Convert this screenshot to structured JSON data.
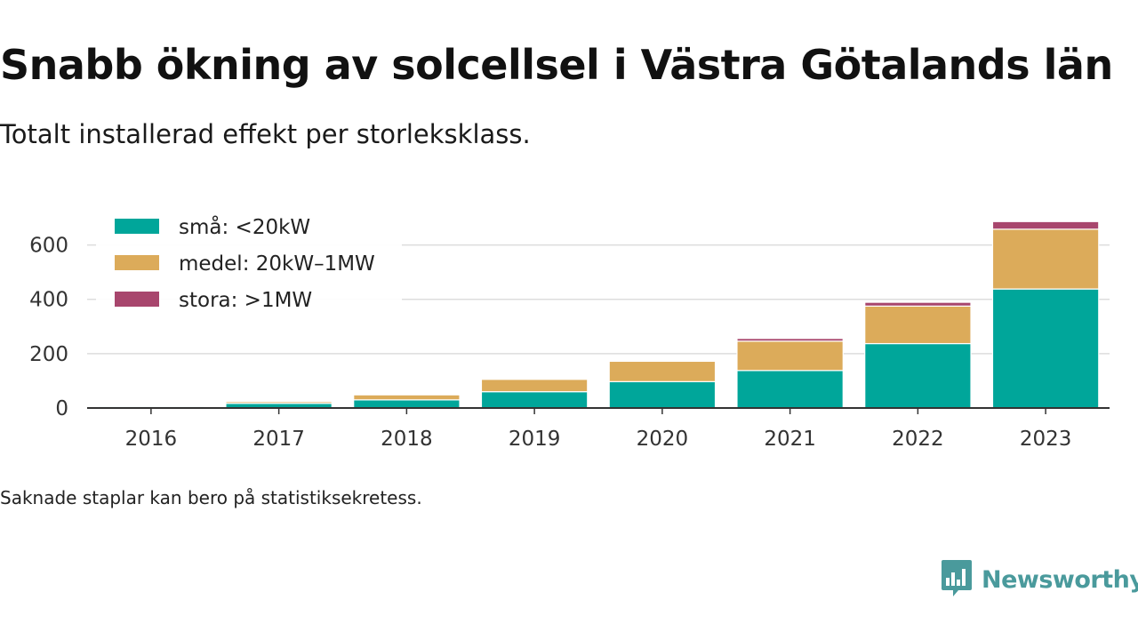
{
  "title": "Snabb ökning av solcellsel i Västra Götalands län",
  "subtitle": "Totalt installerad effekt per storleksklass.",
  "footnote": "Saknade staplar kan bero på statistiksekretess.",
  "brand": {
    "name": "Newsworthy",
    "icon": "newsworthy-logo-icon",
    "color": "#4a9a9c"
  },
  "chart_data": {
    "type": "bar",
    "stacked": true,
    "title": "",
    "xlabel": "",
    "ylabel": "",
    "categories": [
      "2016",
      "2017",
      "2018",
      "2019",
      "2020",
      "2021",
      "2022",
      "2023"
    ],
    "ylim": [
      0,
      700
    ],
    "yticks": [
      0,
      200,
      400,
      600
    ],
    "grid": true,
    "legend_position": "top-left",
    "series": [
      {
        "name": "små: <20kW",
        "color": "#00a69a",
        "values": [
          7,
          17,
          30,
          60,
          97,
          138,
          237,
          438
        ]
      },
      {
        "name": "medel: 20kW–1MW",
        "color": "#dcab5a",
        "values": [
          1,
          8,
          20,
          47,
          75,
          108,
          138,
          220
        ]
      },
      {
        "name": "stora: >1MW",
        "color": "#a8466d",
        "values": [
          0,
          1,
          1,
          1,
          4,
          10,
          14,
          28
        ]
      }
    ]
  }
}
